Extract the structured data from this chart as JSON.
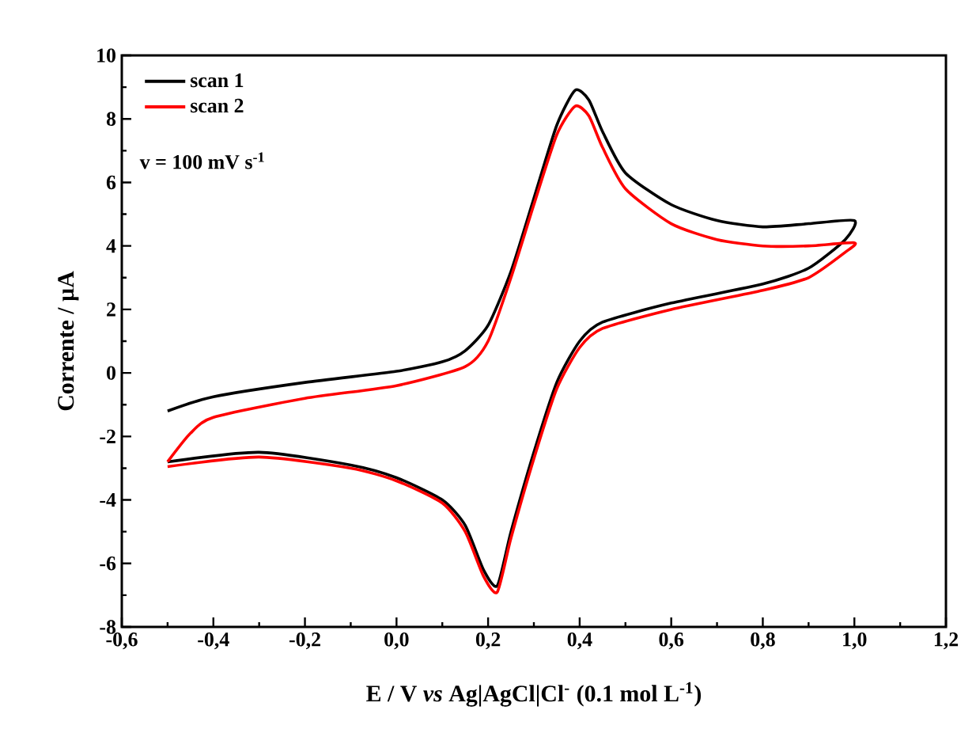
{
  "chart_data": {
    "type": "line",
    "xlabel": "E / V *vs* Ag|AgCl|Cl$^{-}$ (0.1 mol L$^{-1}$)",
    "ylabel": "Corrente / µA",
    "annotations": [
      "v = 100 mV s$^{-1}$"
    ],
    "xlim": [
      -0.6,
      1.2
    ],
    "xticks": [
      {
        "value": -0.6,
        "label": "-0,6"
      },
      {
        "value": -0.4,
        "label": "-0,4"
      },
      {
        "value": -0.2,
        "label": "-0,2"
      },
      {
        "value": 0.0,
        "label": "0,0"
      },
      {
        "value": 0.2,
        "label": "0,2"
      },
      {
        "value": 0.4,
        "label": "0,4"
      },
      {
        "value": 0.6,
        "label": "0,6"
      },
      {
        "value": 0.8,
        "label": "0,8"
      },
      {
        "value": 1.0,
        "label": "1,0"
      },
      {
        "value": 1.2,
        "label": "1,2"
      }
    ],
    "ylim": [
      -8,
      10
    ],
    "yticks": [
      -8,
      -6,
      -4,
      -2,
      0,
      2,
      4,
      6,
      8,
      10
    ],
    "legend": "top left",
    "grid": false,
    "marker": "none",
    "line_style": "solid",
    "series": [
      {
        "name": "scan 1",
        "color": "#000000",
        "x": [
          -0.5,
          -0.4,
          -0.2,
          0.0,
          0.1,
          0.15,
          0.2,
          0.25,
          0.3,
          0.35,
          0.39,
          0.42,
          0.45,
          0.5,
          0.6,
          0.7,
          0.8,
          0.9,
          1.0,
          0.98,
          0.9,
          0.8,
          0.6,
          0.45,
          0.4,
          0.35,
          0.3,
          0.25,
          0.22,
          0.19,
          0.15,
          0.1,
          0.0,
          -0.1,
          -0.3,
          -0.5
        ],
        "values": [
          -1.2,
          -0.75,
          -0.3,
          0.05,
          0.35,
          0.7,
          1.5,
          3.2,
          5.5,
          7.8,
          8.9,
          8.6,
          7.6,
          6.3,
          5.3,
          4.8,
          4.6,
          4.7,
          4.8,
          4.2,
          3.3,
          2.8,
          2.2,
          1.6,
          1.0,
          -0.3,
          -2.5,
          -5.0,
          -6.7,
          -6.2,
          -4.8,
          -4.0,
          -3.3,
          -2.9,
          -2.5,
          -2.8
        ]
      },
      {
        "name": "scan 2",
        "color": "#ff0000",
        "x": [
          -0.5,
          -0.45,
          -0.4,
          -0.2,
          0.0,
          0.15,
          0.2,
          0.25,
          0.3,
          0.35,
          0.39,
          0.42,
          0.45,
          0.5,
          0.6,
          0.7,
          0.8,
          0.9,
          1.0,
          0.98,
          0.9,
          0.8,
          0.6,
          0.45,
          0.4,
          0.35,
          0.3,
          0.25,
          0.22,
          0.19,
          0.15,
          0.1,
          0.0,
          -0.1,
          -0.3,
          -0.5
        ],
        "values": [
          -2.8,
          -1.9,
          -1.4,
          -0.8,
          -0.4,
          0.2,
          1.0,
          3.0,
          5.3,
          7.5,
          8.4,
          8.1,
          7.1,
          5.8,
          4.7,
          4.2,
          4.0,
          4.0,
          4.1,
          3.8,
          3.0,
          2.6,
          2.0,
          1.4,
          0.8,
          -0.5,
          -2.7,
          -5.2,
          -6.9,
          -6.4,
          -5.0,
          -4.1,
          -3.4,
          -3.0,
          -2.65,
          -2.95
        ]
      }
    ]
  }
}
